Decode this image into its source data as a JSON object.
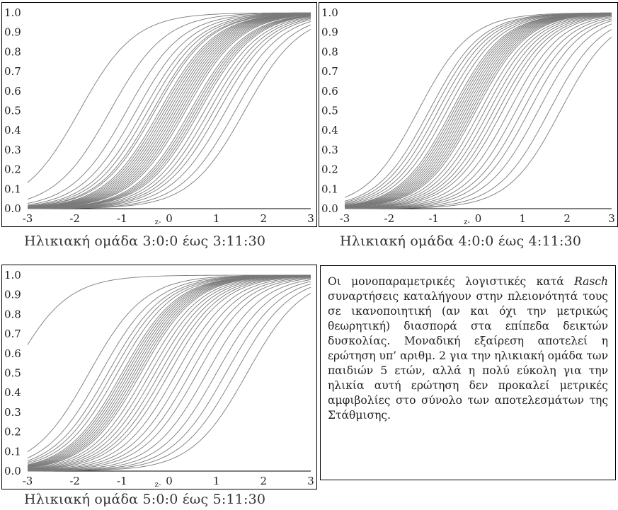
{
  "chart_data": [
    {
      "type": "line",
      "caption": "Ηλικιακή ομάδα 3:0:0 έως 3:11:30",
      "xlabel": "z",
      "ylabel": "",
      "xlim": [
        -3,
        3
      ],
      "ylim": [
        0,
        1
      ],
      "x_ticks": [
        "-3",
        "-2",
        "-1",
        "0",
        "1",
        "2",
        "3"
      ],
      "y_ticks": [
        "0.0",
        "0.1",
        "0.2",
        "0.3",
        "0.4",
        "0.5",
        "0.6",
        "0.7",
        "0.8",
        "0.9",
        "1.0"
      ],
      "curve_function": "logistic: y = 1/(1+exp(-1.7*(x-b)))",
      "series_difficulty_b": [
        -1.9,
        -1.25,
        -0.9,
        -0.7,
        -0.55,
        -0.45,
        -0.35,
        -0.3,
        -0.2,
        -0.15,
        -0.1,
        -0.05,
        0.0,
        0.05,
        0.1,
        0.15,
        0.2,
        0.25,
        0.3,
        0.35,
        0.45,
        0.5,
        0.55,
        0.6,
        0.65,
        0.75,
        0.85,
        0.95,
        1.05,
        1.2,
        1.4,
        1.6
      ],
      "line_color": "#7a7a7a",
      "grid": false
    },
    {
      "type": "line",
      "caption": "Ηλικιακή ομάδα 4:0:0 έως 4:11:30",
      "xlabel": "z",
      "ylabel": "",
      "xlim": [
        -3,
        3
      ],
      "ylim": [
        0,
        1
      ],
      "x_ticks": [
        "-3",
        "-2",
        "-1",
        "0",
        "1",
        "2",
        "3"
      ],
      "y_ticks": [
        "0.0",
        "0.1",
        "0.2",
        "0.3",
        "0.4",
        "0.5",
        "0.6",
        "0.7",
        "0.8",
        "0.9",
        "1.0"
      ],
      "curve_function": "logistic: y = 1/(1+exp(-1.7*(x-b)))",
      "series_difficulty_b": [
        -1.35,
        -1.1,
        -1.0,
        -0.9,
        -0.8,
        -0.7,
        -0.6,
        -0.55,
        -0.5,
        -0.45,
        -0.4,
        -0.35,
        -0.3,
        -0.25,
        -0.2,
        -0.15,
        -0.1,
        -0.05,
        0.05,
        0.15,
        0.25,
        0.35,
        0.45,
        0.55,
        0.7,
        0.85,
        1.0,
        1.15,
        1.35,
        1.6,
        1.85
      ],
      "line_color": "#7a7a7a",
      "grid": false
    },
    {
      "type": "line",
      "caption": "Ηλικιακή ομάδα 5:0:0 έως 5:11:30",
      "xlabel": "z",
      "ylabel": "",
      "xlim": [
        -3,
        3
      ],
      "ylim": [
        0,
        1
      ],
      "x_ticks": [
        "-3",
        "-2",
        "-1",
        "0",
        "1",
        "2",
        "3"
      ],
      "y_ticks": [
        "0.0",
        "0.1",
        "0.2",
        "0.3",
        "0.4",
        "0.5",
        "0.6",
        "0.7",
        "0.8",
        "0.9",
        "1.0"
      ],
      "curve_function": "logistic: y = 1/(1+exp(-1.7*(x-b)))",
      "series_difficulty_b": [
        -3.35,
        -1.7,
        -1.45,
        -1.3,
        -1.2,
        -1.1,
        -1.0,
        -0.95,
        -0.9,
        -0.85,
        -0.8,
        -0.75,
        -0.7,
        -0.65,
        -0.6,
        -0.5,
        -0.4,
        -0.3,
        -0.2,
        -0.1,
        0.0,
        0.15,
        0.3,
        0.45,
        0.6,
        0.8,
        1.0,
        1.2,
        1.4,
        1.65
      ],
      "line_color": "#7a7a7a",
      "grid": false
    }
  ],
  "note": {
    "before_italic": "Οι μονοπαραμετρικές λογιστικές κατά ",
    "italic": "Rasch",
    "after_italic": " συναρτήσεις καταλήγουν στην πλειονότητά τους σε ικανοποιητική (αν και όχι την με­τρικώς θεωρητική) διασπορά στα επίπεδα δεικτών δυσκολίας. Μοναδική εξαίρεση αποτελεί η ερώτηση υπ’ αριθμ. 2 για την ηλικιακή ομάδα των παιδιών 5 ετών, αλλά η πολύ εύκολη για την ηλικία αυτή ερώτηση δεν προκαλεί μετρικές αμφιβολίες στο σύ­νολο των αποτελεσμάτων της Στάθμισης."
  }
}
